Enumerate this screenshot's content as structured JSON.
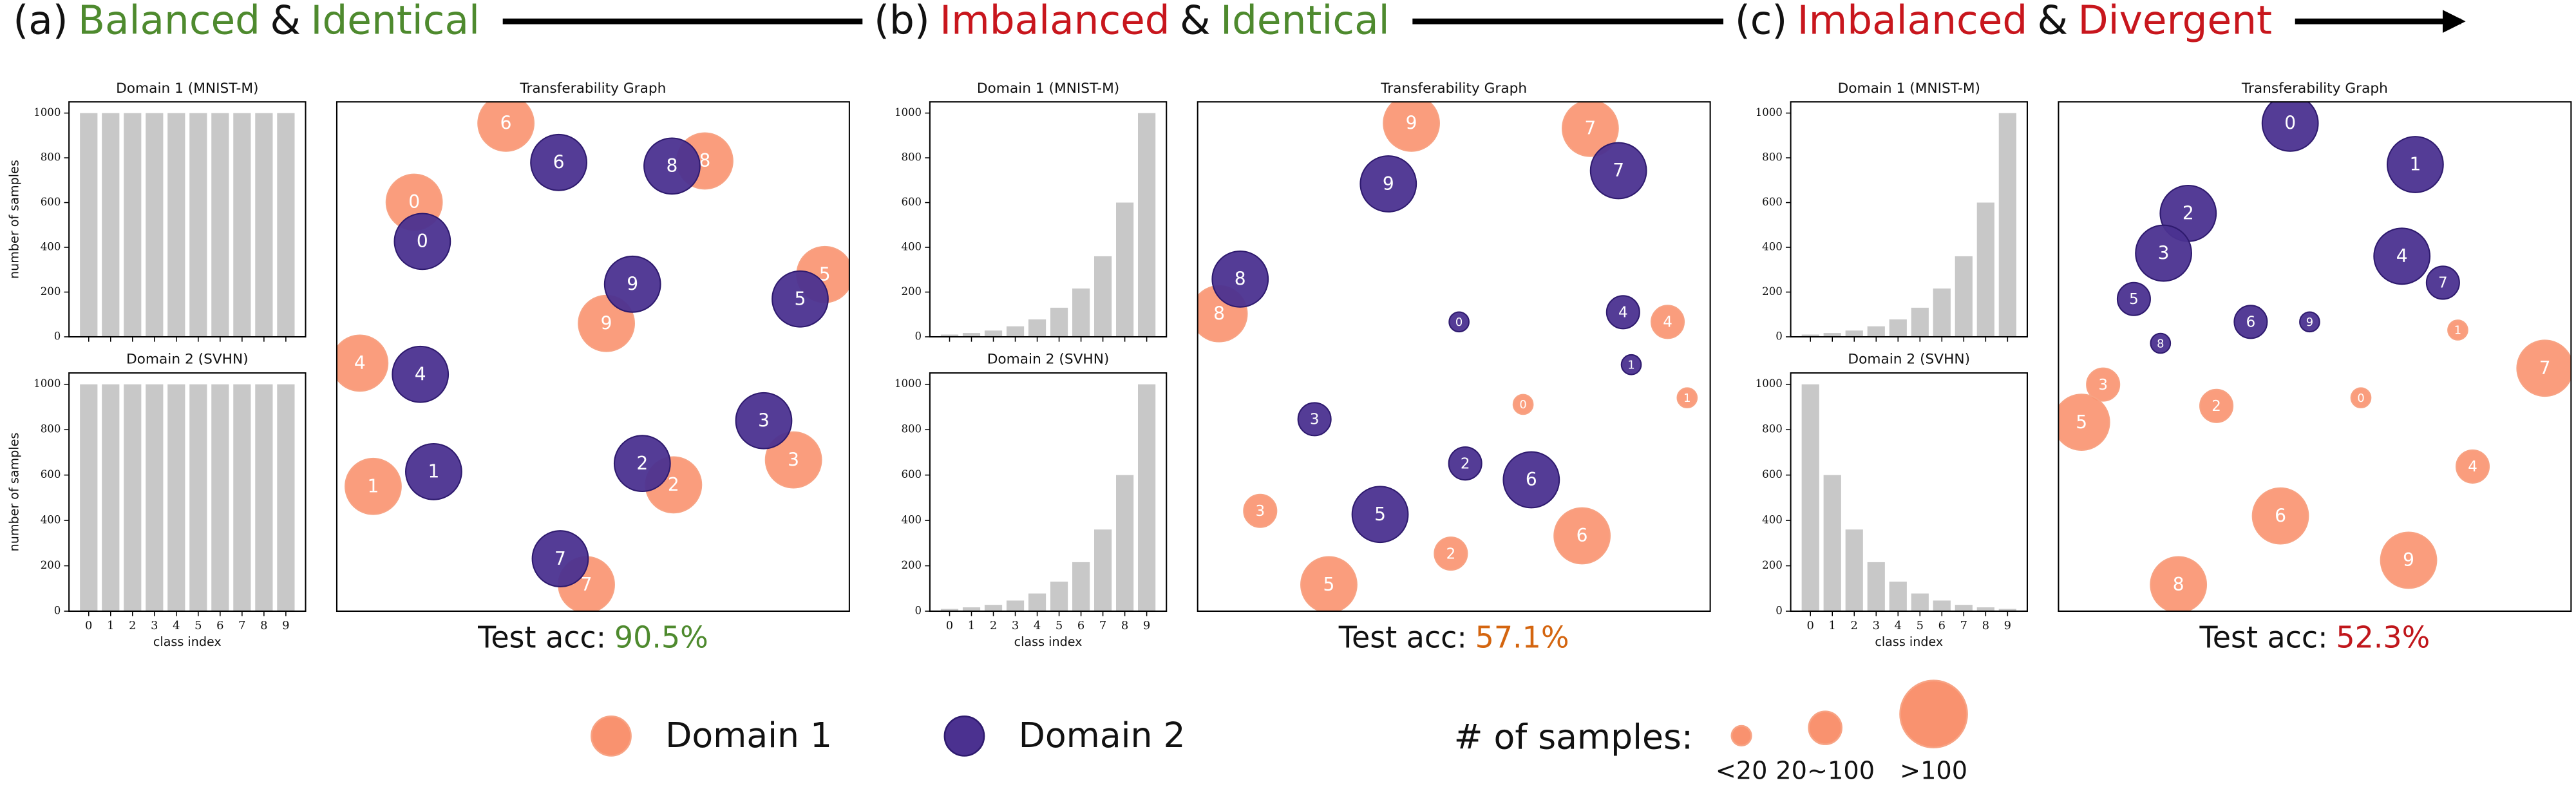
{
  "panels": [
    {
      "label": "(a)",
      "title_parts": [
        {
          "text": "Balanced",
          "color": "#4e8a2e"
        },
        {
          "text": "&",
          "color": "#111111"
        },
        {
          "text": "Identical",
          "color": "#4e8a2e"
        }
      ],
      "bar_charts": [
        {
          "type": "bar",
          "title": "Domain 1 (MNIST-M)",
          "ylabel": "number of samples",
          "categories": [
            "0",
            "1",
            "2",
            "3",
            "4",
            "5",
            "6",
            "7",
            "8",
            "9"
          ],
          "values": [
            1000,
            1000,
            1000,
            1000,
            1000,
            1000,
            1000,
            1000,
            1000,
            1000
          ],
          "color": "#c8c8c8",
          "ylim": [
            0,
            1050
          ],
          "yticks": [
            0,
            200,
            400,
            600,
            800,
            1000
          ]
        },
        {
          "type": "bar",
          "title": "Domain 2 (SVHN)",
          "ylabel": "number of samples",
          "xlabel": "class index",
          "categories": [
            "0",
            "1",
            "2",
            "3",
            "4",
            "5",
            "6",
            "7",
            "8",
            "9"
          ],
          "values": [
            1000,
            1000,
            1000,
            1000,
            1000,
            1000,
            1000,
            1000,
            1000,
            1000
          ],
          "color": "#c8c8c8",
          "ylim": [
            0,
            1050
          ],
          "yticks": [
            0,
            200,
            400,
            600,
            800,
            1000
          ]
        }
      ],
      "graph": {
        "type": "scatter",
        "title": "Transferability Graph",
        "xlim": [
          0,
          100
        ],
        "ylim": [
          0,
          100
        ],
        "series": [
          {
            "x": [
              15.1,
              7.1,
              65.7,
              89.1,
              4.5,
              95.2,
              33.0,
              48.7,
              71.8,
              52.6
            ],
            "y": [
              80.3,
              24.5,
              24.8,
              29.7,
              48.7,
              66.1,
              95.8,
              5.2,
              88.4,
              56.5
            ]
          },
          {
            "x": [
              16.7,
              18.9,
              59.6,
              83.3,
              16.3,
              90.4,
              43.3,
              43.6,
              65.4,
              57.7
            ],
            "y": [
              72.6,
              27.4,
              29.0,
              37.4,
              46.5,
              61.3,
              88.1,
              10.3,
              87.4,
              64.2
            ]
          }
        ]
      },
      "accuracy": {
        "label": "Test acc:",
        "value": 90.5,
        "value_label": "90.5%",
        "color": "#4e8a2e"
      }
    },
    {
      "label": "(b)",
      "title_parts": [
        {
          "text": "Imbalanced",
          "color": "#c8161d"
        },
        {
          "text": "&",
          "color": "#111111"
        },
        {
          "text": "Identical",
          "color": "#4e8a2e"
        }
      ],
      "bar_charts": [
        {
          "type": "bar",
          "title": "Domain 1 (MNIST-M)",
          "categories": [
            "0",
            "1",
            "2",
            "3",
            "4",
            "5",
            "6",
            "7",
            "8",
            "9"
          ],
          "values": [
            10,
            17,
            28,
            47,
            78,
            130,
            216,
            360,
            600,
            1000
          ],
          "color": "#c8c8c8",
          "ylim": [
            0,
            1050
          ],
          "yticks": [
            0,
            200,
            400,
            600,
            800,
            1000
          ]
        },
        {
          "type": "bar",
          "title": "Domain 2 (SVHN)",
          "xlabel": "class index",
          "categories": [
            "0",
            "1",
            "2",
            "3",
            "4",
            "5",
            "6",
            "7",
            "8",
            "9"
          ],
          "values": [
            10,
            17,
            28,
            47,
            78,
            130,
            216,
            360,
            600,
            1000
          ],
          "color": "#c8c8c8",
          "ylim": [
            0,
            1050
          ],
          "yticks": [
            0,
            200,
            400,
            600,
            800,
            1000
          ]
        }
      ],
      "graph": {
        "type": "scatter",
        "title": "Transferability Graph",
        "xlim": [
          0,
          100
        ],
        "ylim": [
          0,
          100
        ],
        "series": [
          {
            "x": [
              63.5,
              95.5,
              49.4,
              12.2,
              91.7,
              25.6,
              75.0,
              76.6,
              4.2,
              41.7
            ],
            "y": [
              40.6,
              41.9,
              11.3,
              19.7,
              56.8,
              5.2,
              14.8,
              94.8,
              58.4,
              95.8
            ]
          },
          {
            "x": [
              51.0,
              84.6,
              52.2,
              22.8,
              83.0,
              35.6,
              65.1,
              82.1,
              8.3,
              37.2
            ],
            "y": [
              56.8,
              48.4,
              29.0,
              37.7,
              58.7,
              19.0,
              25.8,
              86.5,
              65.2,
              83.9
            ]
          }
        ]
      },
      "accuracy": {
        "label": "Test acc:",
        "value": 57.1,
        "value_label": "57.1%",
        "color": "#d4650f"
      }
    },
    {
      "label": "(c)",
      "title_parts": [
        {
          "text": "Imbalanced",
          "color": "#c8161d"
        },
        {
          "text": "&",
          "color": "#111111"
        },
        {
          "text": "Divergent",
          "color": "#c8161d"
        }
      ],
      "bar_charts": [
        {
          "type": "bar",
          "title": "Domain 1 (MNIST-M)",
          "categories": [
            "0",
            "1",
            "2",
            "3",
            "4",
            "5",
            "6",
            "7",
            "8",
            "9"
          ],
          "values": [
            10,
            17,
            28,
            47,
            78,
            130,
            216,
            360,
            600,
            1000
          ],
          "color": "#c8c8c8",
          "ylim": [
            0,
            1050
          ],
          "yticks": [
            0,
            200,
            400,
            600,
            800,
            1000
          ]
        },
        {
          "type": "bar",
          "title": "Domain 2 (SVHN)",
          "xlabel": "class index",
          "categories": [
            "0",
            "1",
            "2",
            "3",
            "4",
            "5",
            "6",
            "7",
            "8",
            "9"
          ],
          "values": [
            1000,
            600,
            360,
            216,
            130,
            78,
            47,
            28,
            17,
            10
          ],
          "color": "#c8c8c8",
          "ylim": [
            0,
            1050
          ],
          "yticks": [
            0,
            200,
            400,
            600,
            800,
            1000
          ]
        }
      ],
      "graph": {
        "type": "scatter",
        "title": "Transferability Graph",
        "xlim": [
          0,
          100
        ],
        "ylim": [
          0,
          100
        ],
        "series": [
          {
            "x": [
              59.0,
              77.9,
              30.8,
              8.7,
              80.8,
              4.5,
              43.3,
              94.9,
              23.4,
              68.3
            ],
            "y": [
              41.9,
              55.2,
              40.3,
              44.5,
              28.4,
              37.1,
              18.7,
              47.7,
              5.2,
              10.0
            ]
          },
          {
            "x": [
              45.2,
              69.6,
              25.3,
              20.5,
              67.0,
              14.7,
              37.5,
              75.0,
              19.9,
              49.0
            ],
            "y": [
              95.8,
              87.7,
              78.1,
              70.3,
              69.7,
              61.3,
              56.8,
              64.5,
              52.6,
              56.8
            ]
          }
        ]
      },
      "accuracy": {
        "label": "Test acc:",
        "value": 52.3,
        "value_label": "52.3%",
        "color": "#c0161b"
      }
    }
  ],
  "legend": {
    "items": [
      {
        "name": "Domain 1",
        "color": "#f9926f"
      },
      {
        "name": "Domain 2",
        "color": "#4b3190"
      }
    ],
    "size_title": "# of samples:",
    "sizes": [
      {
        "label": "<20",
        "upper": 20
      },
      {
        "label": "20~100",
        "upper": 100
      },
      {
        "label": ">100"
      }
    ]
  }
}
